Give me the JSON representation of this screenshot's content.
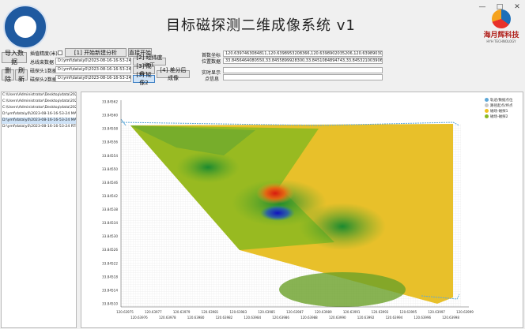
{
  "window": {
    "title": "目标磁探测二维成像系统  v1",
    "min": "—",
    "max": "□",
    "close": "✕"
  },
  "brand": {
    "name": "海月辉科技",
    "tagline": "HYH TECHNOLOGY"
  },
  "buttons": {
    "import": "导入数据",
    "delete": "删除",
    "refresh": "刷新",
    "step1": "[1] 开始新建分析",
    "step2": "[2] 经纬度修正",
    "step3a": "[3] 成像1",
    "step3b": "[3] 成像2",
    "step4": "[4] 差分后成像",
    "analyze": "直接开始"
  },
  "labels": {
    "interp": "插值精度(米)",
    "total": "总线束数据",
    "probe1": "磁探头1数据",
    "probe2": "磁探头2数据",
    "ref_coord": "首数坐标",
    "pos_data": "位置数据",
    "realtime": "实时显示",
    "point_info": "点信息"
  },
  "fields": {
    "total_path": "D:\\ymf\\data\\y0\\2023-08-16-16-53-24 RTK.txt",
    "probe1_path": "D:\\ymf\\data\\y0\\2023-08-16-16-53-24 MAG1.txt",
    "probe2_path": "D:\\ymf\\data\\y0\\2023-08-16-16-53-24 MAG2.txt",
    "ref_coord": "120.6397463084811,120.6398953208366,120.6398902035206,120.6398903082517",
    "pos_data": "33.8456464080550,33.8455899928300,33.8451084894743,33.8453210039064"
  },
  "files": [
    "C:\\Users\\Administrator\\Desktop\\data\\2023.08.16\\",
    "C:\\Users\\Administrator\\Desktop\\data\\2023.08.16\\",
    "C:\\Users\\Administrator\\Desktop\\data\\2023.08.16\\",
    "D:\\ymf\\data\\y0\\2023-08-16-16-53-24 MAG1.txt",
    "D:\\ymf\\data\\y0\\2023-08-16-16-53-24 MAG2.txt",
    "D:\\ymf\\data\\y0\\2023-08-16-16-53-24 RTK.txt"
  ],
  "legend": [
    "轨迹/数据点位",
    "路径起点/终点",
    "磁场-磁探1",
    "磁场-磁探2"
  ],
  "colors": {
    "legend": [
      "#5ea8d8",
      "#c8c8c8",
      "#f0c020",
      "#8ab820"
    ]
  },
  "chart_data": {
    "type": "heatmap",
    "y_ticks": [
      "33.84562",
      "33.84560",
      "33.84558",
      "33.84556",
      "33.84554",
      "33.84550",
      "33.84546",
      "33.84542",
      "33.84538",
      "33.84534",
      "33.84530",
      "33.84526",
      "33.84522",
      "33.84518",
      "33.84514",
      "33.84510"
    ],
    "x_ticks": [
      "120.63975",
      "120.63977",
      "120.63979",
      "120.63981",
      "120.63983",
      "120.63985",
      "120.63987",
      "120.63989",
      "120.63991",
      "120.63993",
      "120.63995",
      "120.63997",
      "120.63999"
    ],
    "x_ticks_lower": [
      "120.63976",
      "120.63978",
      "120.63980",
      "120.63982",
      "120.63984",
      "120.63986",
      "120.63988",
      "120.63990",
      "120.63992",
      "120.63994",
      "120.63996",
      "120.63998"
    ]
  }
}
